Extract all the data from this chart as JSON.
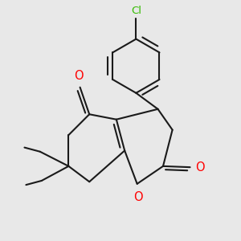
{
  "background_color": "#e8e8e8",
  "bond_color": "#1a1a1a",
  "oxygen_color": "#ff0000",
  "chlorine_color": "#33bb00",
  "line_width": 1.5,
  "figsize": [
    3.0,
    3.0
  ],
  "dpi": 100,
  "xlim": [
    -2.2,
    2.2
  ],
  "ylim": [
    -1.8,
    2.8
  ],
  "font_size_atom": 10.5,
  "font_size_cl": 9.5
}
